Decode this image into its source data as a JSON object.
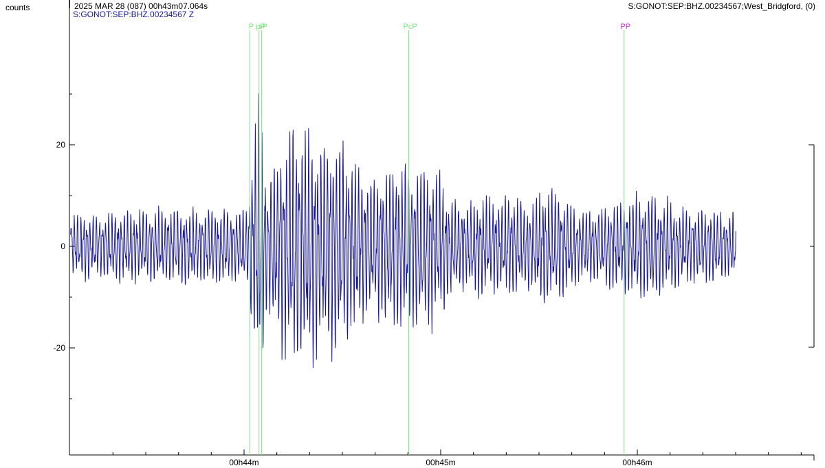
{
  "header": {
    "units": "counts",
    "start_time": "2025 MAR 28 (087)  00h43m07.064s",
    "station_info": "S:GONOT:SEP:BHZ.00234567;West_Bridgford, (0)",
    "trace_id": "S:GONOT:SEP:BHZ.00234567 Z"
  },
  "colors": {
    "trace": "#1a1a99",
    "p_phase_marker": "#7de87d",
    "pp_marker_label": "#cc33cc",
    "axis": "#000000"
  },
  "chart_data": {
    "type": "line",
    "title": "",
    "xlabel": "",
    "ylabel": "counts",
    "x_ticks": [
      "00h44m",
      "00h45m",
      "00h46m"
    ],
    "y_ticks": [
      20,
      0,
      -20
    ],
    "xlim_seconds_after_start": [
      0,
      203
    ],
    "ylim": [
      -38,
      38
    ],
    "phase_markers": [
      {
        "name": "P",
        "seconds_after_start": 54.7,
        "color": "green"
      },
      {
        "name": "pP",
        "seconds_after_start": 57.5,
        "color": "green"
      },
      {
        "name": "sP",
        "seconds_after_start": 58.3,
        "color": "green"
      },
      {
        "name": "PcP",
        "seconds_after_start": 103.2,
        "color": "green"
      },
      {
        "name": "PP",
        "seconds_after_start": 168.9,
        "color": "magenta"
      }
    ],
    "series": [
      {
        "amplitude_envelope": {
          "seconds_after_start": [
            0,
            10,
            20,
            30,
            40,
            50,
            54,
            56,
            57.5,
            60,
            64,
            68,
            72,
            76,
            80,
            84,
            88,
            92,
            96,
            100,
            104,
            108,
            112,
            116,
            120,
            125,
            130,
            135,
            140,
            145,
            150,
            155,
            160,
            165,
            170,
            175,
            180,
            185,
            190,
            195,
            203
          ],
          "peak_counts": [
            7,
            7,
            8,
            8,
            8,
            8,
            9,
            22,
            34,
            14,
            21,
            26,
            26,
            23,
            23,
            21,
            18,
            15,
            16,
            18,
            17,
            18,
            16,
            11,
            9,
            11,
            10,
            11,
            9,
            13,
            11,
            8,
            8,
            9,
            10,
            12,
            11,
            9,
            8,
            8,
            7
          ]
        }
      }
    ]
  }
}
